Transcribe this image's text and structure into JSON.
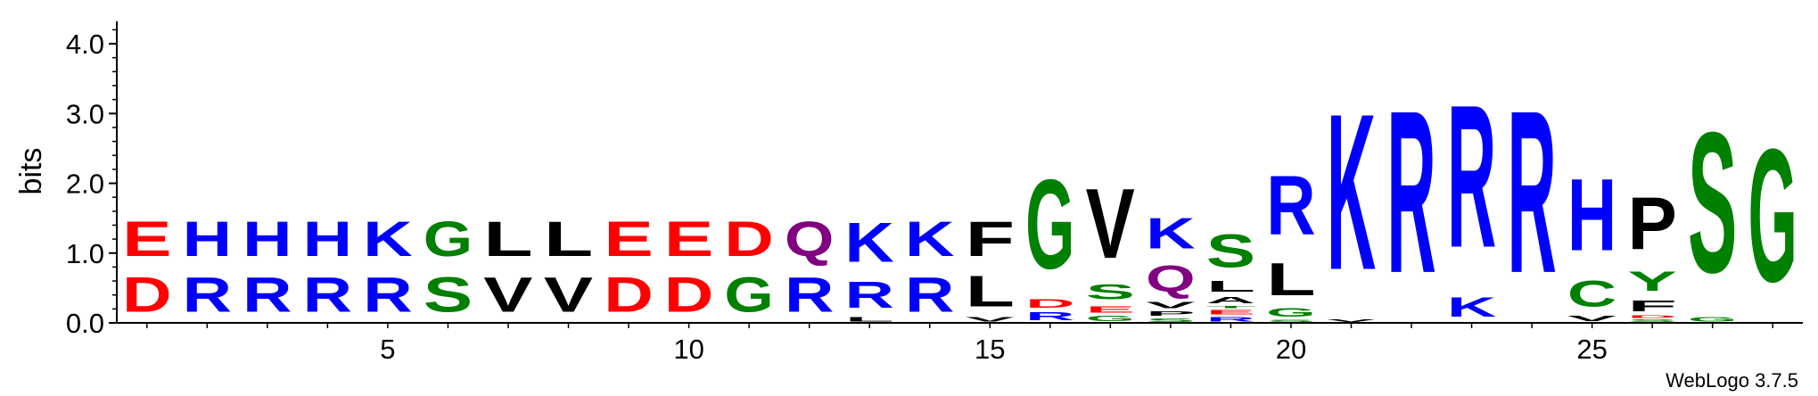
{
  "chart_data": {
    "type": "sequence-logo",
    "ylabel": "bits",
    "ylim": [
      0,
      4.32
    ],
    "yticks": [
      "0.0",
      "1.0",
      "2.0",
      "3.0",
      "4.0"
    ],
    "yticks_values": [
      0,
      1,
      2,
      3,
      4
    ],
    "xlim": [
      0.5,
      28.5
    ],
    "xticks": [
      "5",
      "10",
      "15",
      "20",
      "25"
    ],
    "xticks_values": [
      5,
      10,
      15,
      20,
      25
    ],
    "colors": {
      "R": "#0000ff",
      "K": "#0000ff",
      "H": "#0000ff",
      "D": "#ff0000",
      "E": "#ff0000",
      "G": "#008000",
      "S": "#008000",
      "C": "#008000",
      "Y": "#008000",
      "T": "#008000",
      "Q": "#800080",
      "N": "#800080",
      "V": "#000000",
      "L": "#000000",
      "A": "#000000",
      "P": "#000000",
      "F": "#000000",
      "I": "#000000",
      "M": "#000000"
    },
    "positions": [
      {
        "pos": 1,
        "letters": [
          {
            "l": "D",
            "h": 0.8
          },
          {
            "l": "E",
            "h": 0.8
          }
        ]
      },
      {
        "pos": 2,
        "letters": [
          {
            "l": "R",
            "h": 0.8
          },
          {
            "l": "H",
            "h": 0.8
          }
        ]
      },
      {
        "pos": 3,
        "letters": [
          {
            "l": "R",
            "h": 0.8
          },
          {
            "l": "H",
            "h": 0.8
          }
        ]
      },
      {
        "pos": 4,
        "letters": [
          {
            "l": "R",
            "h": 0.8
          },
          {
            "l": "H",
            "h": 0.8
          }
        ]
      },
      {
        "pos": 5,
        "letters": [
          {
            "l": "R",
            "h": 0.8
          },
          {
            "l": "K",
            "h": 0.8
          }
        ]
      },
      {
        "pos": 6,
        "letters": [
          {
            "l": "S",
            "h": 0.8
          },
          {
            "l": "G",
            "h": 0.8
          }
        ]
      },
      {
        "pos": 7,
        "letters": [
          {
            "l": "V",
            "h": 0.8
          },
          {
            "l": "L",
            "h": 0.8
          }
        ]
      },
      {
        "pos": 8,
        "letters": [
          {
            "l": "V",
            "h": 0.8
          },
          {
            "l": "L",
            "h": 0.8
          }
        ]
      },
      {
        "pos": 9,
        "letters": [
          {
            "l": "D",
            "h": 0.8
          },
          {
            "l": "E",
            "h": 0.8
          }
        ]
      },
      {
        "pos": 10,
        "letters": [
          {
            "l": "D",
            "h": 0.8
          },
          {
            "l": "E",
            "h": 0.8
          }
        ]
      },
      {
        "pos": 11,
        "letters": [
          {
            "l": "G",
            "h": 0.8
          },
          {
            "l": "D",
            "h": 0.8
          }
        ]
      },
      {
        "pos": 12,
        "letters": [
          {
            "l": "R",
            "h": 0.8
          },
          {
            "l": "Q",
            "h": 0.8
          }
        ]
      },
      {
        "pos": 13,
        "letters": [
          {
            "l": "L",
            "h": 0.1
          },
          {
            "l": "R",
            "h": 0.6
          },
          {
            "l": "K",
            "h": 0.9
          }
        ]
      },
      {
        "pos": 14,
        "letters": [
          {
            "l": "R",
            "h": 0.8
          },
          {
            "l": "K",
            "h": 0.8
          }
        ]
      },
      {
        "pos": 15,
        "letters": [
          {
            "l": "V",
            "h": 0.1
          },
          {
            "l": "L",
            "h": 0.7
          },
          {
            "l": "F",
            "h": 0.8
          }
        ]
      },
      {
        "pos": 16,
        "letters": [
          {
            "l": "R",
            "h": 0.18
          },
          {
            "l": "D",
            "h": 0.2
          },
          {
            "l": "G",
            "h": 2.05
          }
        ]
      },
      {
        "pos": 17,
        "letters": [
          {
            "l": "G",
            "h": 0.12
          },
          {
            "l": "E",
            "h": 0.15
          },
          {
            "l": "S",
            "h": 0.35
          },
          {
            "l": "V",
            "h": 1.6
          }
        ]
      },
      {
        "pos": 18,
        "letters": [
          {
            "l": "S",
            "h": 0.08
          },
          {
            "l": "P",
            "h": 0.1
          },
          {
            "l": "V",
            "h": 0.15
          },
          {
            "l": "Q",
            "h": 0.6
          },
          {
            "l": "K",
            "h": 0.7
          }
        ]
      },
      {
        "pos": 19,
        "letters": [
          {
            "l": "R",
            "h": 0.1
          },
          {
            "l": "E",
            "h": 0.1
          },
          {
            "l": "T",
            "h": 0.05
          },
          {
            "l": "A",
            "h": 0.15
          },
          {
            "l": "L",
            "h": 0.25
          },
          {
            "l": "S",
            "h": 0.75
          }
        ]
      },
      {
        "pos": 20,
        "letters": [
          {
            "l": "S",
            "h": 0.05
          },
          {
            "l": "G",
            "h": 0.2
          },
          {
            "l": "L",
            "h": 0.75
          },
          {
            "l": "R",
            "h": 1.35
          }
        ]
      },
      {
        "pos": 21,
        "letters": [
          {
            "l": "V",
            "h": 0.07
          },
          {
            "l": "K",
            "h": 3.58
          }
        ]
      },
      {
        "pos": 22,
        "letters": [
          {
            "l": "R",
            "h": 3.72
          }
        ]
      },
      {
        "pos": 23,
        "letters": [
          {
            "l": "K",
            "h": 0.45
          },
          {
            "l": "R",
            "h": 3.27
          }
        ]
      },
      {
        "pos": 24,
        "letters": [
          {
            "l": "R",
            "h": 3.72
          }
        ]
      },
      {
        "pos": 25,
        "letters": [
          {
            "l": "V",
            "h": 0.12
          },
          {
            "l": "C",
            "h": 0.6
          },
          {
            "l": "H",
            "h": 1.65
          }
        ]
      },
      {
        "pos": 26,
        "letters": [
          {
            "l": "S",
            "h": 0.06
          },
          {
            "l": "D",
            "h": 0.06
          },
          {
            "l": "F",
            "h": 0.25
          },
          {
            "l": "Y",
            "h": 0.45
          },
          {
            "l": "P",
            "h": 1.2
          }
        ]
      },
      {
        "pos": 27,
        "letters": [
          {
            "l": "G",
            "h": 0.1
          },
          {
            "l": "S",
            "h": 3.22
          }
        ]
      },
      {
        "pos": 28,
        "letters": [
          {
            "l": "G",
            "h": 3.05
          }
        ]
      }
    ]
  },
  "footer": {
    "credit": "WebLogo 3.7.5"
  }
}
